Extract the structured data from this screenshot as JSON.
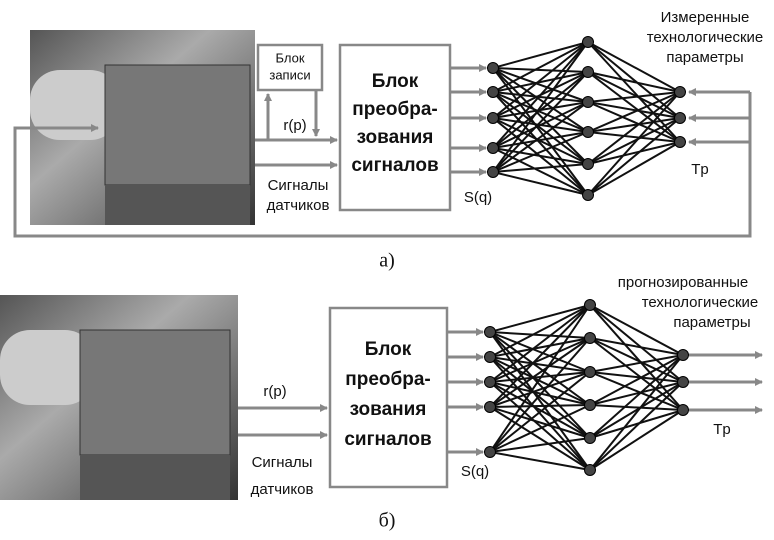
{
  "panels": [
    {
      "caption": "а)",
      "record_block": [
        "Блок",
        "записи"
      ],
      "converter": [
        "Блок",
        "преобра-",
        "зования",
        "сигналов"
      ],
      "input_rp": "r(p)",
      "input_sensors": [
        "Сигналы",
        "датчиков"
      ],
      "sq": "S(q)",
      "tp": "Tp",
      "params": [
        "Измеренные",
        "технологические",
        "параметры"
      ]
    },
    {
      "caption": "б)",
      "converter": [
        "Блок",
        "преобра-",
        "зования",
        "сигналов"
      ],
      "input_rp": "r(p)",
      "input_sensors": [
        "Сигналы",
        "датчиков"
      ],
      "sq": "S(q)",
      "tp": "Tp",
      "params": [
        "прогнозированные",
        "технологические",
        "параметры"
      ]
    }
  ]
}
